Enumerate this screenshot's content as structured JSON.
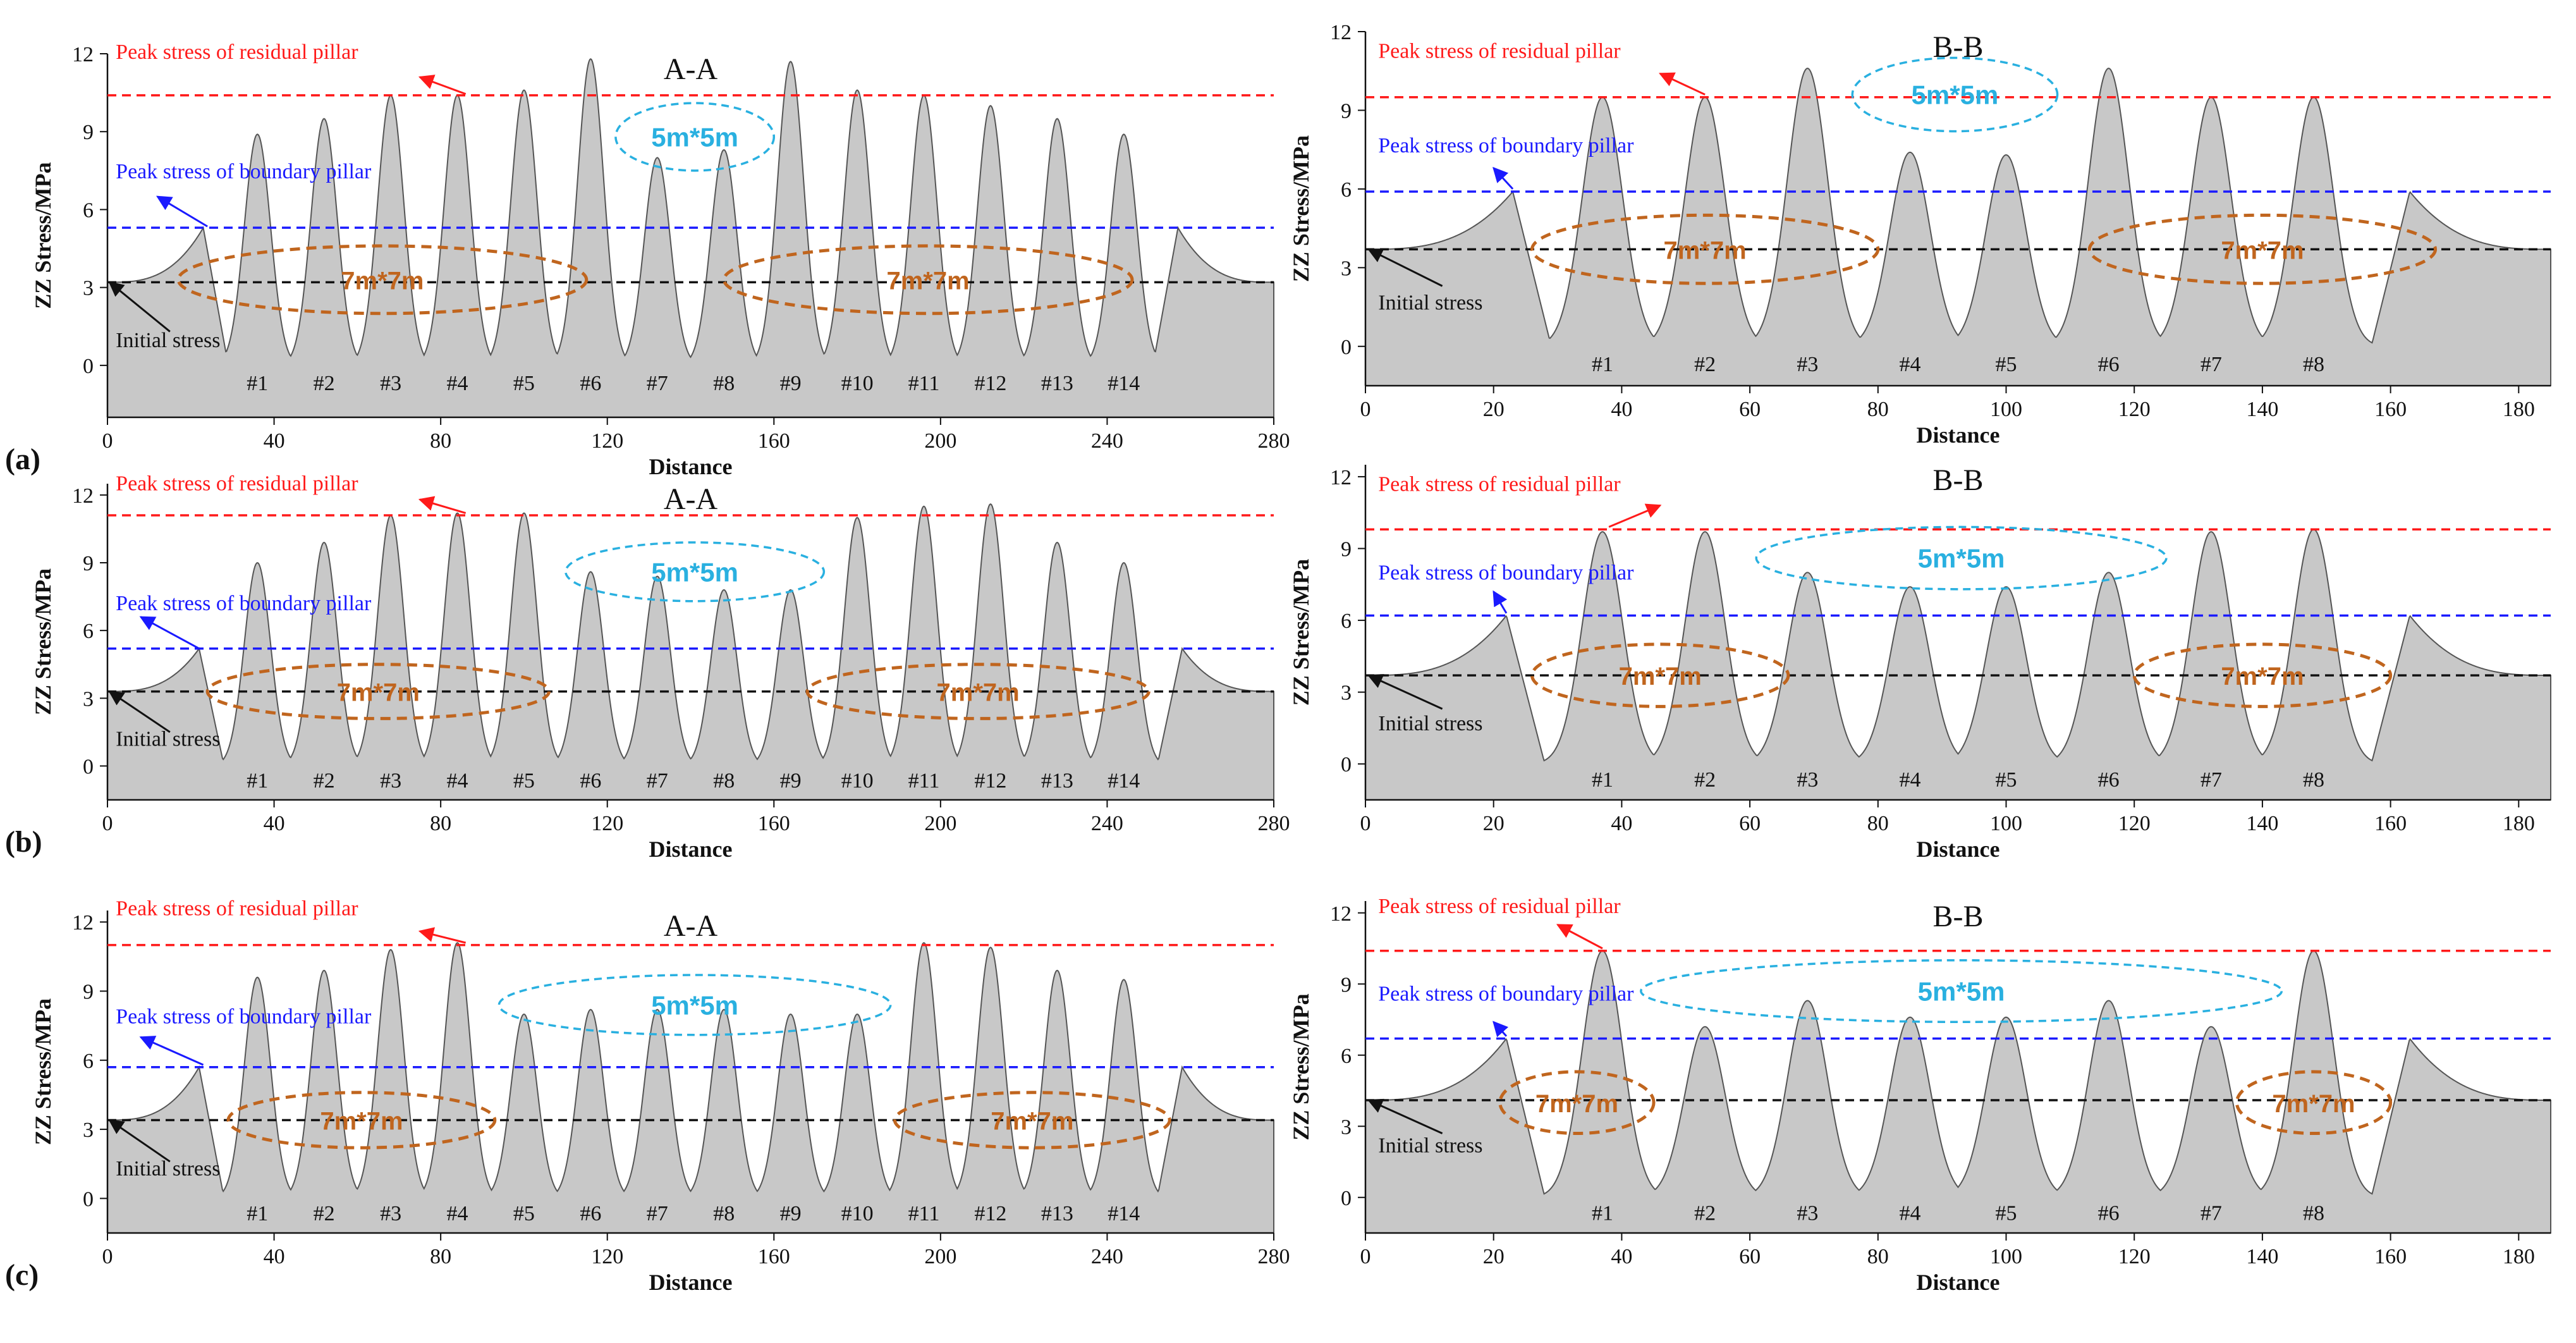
{
  "colors": {
    "area_fill": "#c8c8c8",
    "area_stroke": "#555555",
    "residual": "#ff1a1a",
    "boundary": "#1a1aff",
    "initial": "#111111",
    "ellipse_small": "#29b0e0",
    "ellipse_large": "#c0651e"
  },
  "chart_data": [
    {
      "id": "a-AA",
      "type": "area",
      "row_label": "(a)",
      "title": "A-A",
      "xlabel": "Distance",
      "ylabel": "ZZ Stress/MPa",
      "xlim": [
        0,
        280
      ],
      "ylim": [
        -2,
        12
      ],
      "xticks": [
        "0",
        "40",
        "80",
        "120",
        "160",
        "200",
        "240",
        "280"
      ],
      "yticks": [
        "0",
        "3",
        "6",
        "9",
        "12"
      ],
      "initial_stress": 3.2,
      "boundary_peak": 5.3,
      "residual_peak": 10.4,
      "boundary_edge": {
        "left_peak_x": 23,
        "left_peak": 5.3,
        "right_peak_x": 257,
        "right_peak": 5.3
      },
      "pillars": [
        {
          "label": "#1",
          "x": 36,
          "peak": 8.9
        },
        {
          "label": "#2",
          "x": 52,
          "peak": 9.5
        },
        {
          "label": "#3",
          "x": 68,
          "peak": 10.4
        },
        {
          "label": "#4",
          "x": 84,
          "peak": 10.4
        },
        {
          "label": "#5",
          "x": 100,
          "peak": 10.6
        },
        {
          "label": "#6",
          "x": 116,
          "peak": 11.8
        },
        {
          "label": "#7",
          "x": 132,
          "peak": 8.0
        },
        {
          "label": "#8",
          "x": 148,
          "peak": 8.3
        },
        {
          "label": "#9",
          "x": 164,
          "peak": 11.7
        },
        {
          "label": "#10",
          "x": 180,
          "peak": 10.6
        },
        {
          "label": "#11",
          "x": 196,
          "peak": 10.4
        },
        {
          "label": "#12",
          "x": 212,
          "peak": 10.0
        },
        {
          "label": "#13",
          "x": 228,
          "peak": 9.5
        },
        {
          "label": "#14",
          "x": 244,
          "peak": 8.9
        }
      ],
      "annotations": {
        "residual": "Peak stress of residual pillar",
        "boundary": "Peak stress of boundary pillar",
        "initial": "Initial stress"
      },
      "ellipses": [
        {
          "label": "5m*5m",
          "style": "small",
          "cx": 141,
          "cy": 8.8,
          "rx": 19,
          "ry": 1.3,
          "fs": 1
        },
        {
          "label": "7m*7m",
          "style": "large",
          "cx": 66,
          "cy": 3.3,
          "rx": 49,
          "ry": 1.3,
          "fs": 1
        },
        {
          "label": "7m*7m",
          "style": "large",
          "cx": 197,
          "cy": 3.3,
          "rx": 49,
          "ry": 1.3,
          "fs": 1
        }
      ],
      "arrows": {
        "residual": [
          75,
          11.1,
          86,
          10.45
        ],
        "boundary": [
          12,
          6.5,
          24,
          5.35
        ],
        "initial": [
          15,
          1.3,
          0.5,
          3.2
        ]
      },
      "text_pos": {
        "residual": [
          2,
          11.8
        ],
        "boundary": [
          2,
          7.2
        ],
        "initial": [
          2,
          0.7
        ]
      }
    },
    {
      "id": "a-BB",
      "type": "area",
      "title": "B-B",
      "xlabel": "Distance",
      "ylabel": "ZZ Stress/MPa",
      "xlim": [
        0,
        185
      ],
      "ylim": [
        -1.5,
        12
      ],
      "xticks": [
        "0",
        "20",
        "40",
        "60",
        "80",
        "100",
        "120",
        "140",
        "160",
        "180"
      ],
      "yticks": [
        "0",
        "3",
        "6",
        "9",
        "12"
      ],
      "initial_stress": 3.7,
      "boundary_peak": 5.9,
      "residual_peak": 9.5,
      "boundary_edge": {
        "left_peak_x": 23,
        "left_peak": 5.9,
        "right_peak_x": 163,
        "right_peak": 5.9
      },
      "pillars": [
        {
          "label": "#1",
          "x": 37,
          "peak": 9.5
        },
        {
          "label": "#2",
          "x": 53,
          "peak": 9.5
        },
        {
          "label": "#3",
          "x": 69,
          "peak": 10.6
        },
        {
          "label": "#4",
          "x": 85,
          "peak": 7.4
        },
        {
          "label": "#5",
          "x": 100,
          "peak": 7.3
        },
        {
          "label": "#6",
          "x": 116,
          "peak": 10.6
        },
        {
          "label": "#7",
          "x": 132,
          "peak": 9.5
        },
        {
          "label": "#8",
          "x": 148,
          "peak": 9.5
        }
      ],
      "annotations": {
        "residual": "Peak stress of residual pillar",
        "boundary": "Peak stress of boundary pillar",
        "initial": "Initial stress"
      },
      "ellipses": [
        {
          "label": "5m*5m",
          "style": "small",
          "cx": 92,
          "cy": 9.6,
          "rx": 16,
          "ry": 1.4,
          "fs": 1
        },
        {
          "label": "7m*7m",
          "style": "large",
          "cx": 53,
          "cy": 3.7,
          "rx": 27,
          "ry": 1.3,
          "fs": 1
        },
        {
          "label": "7m*7m",
          "style": "large",
          "cx": 140,
          "cy": 3.7,
          "rx": 27,
          "ry": 1.3,
          "fs": 1
        }
      ],
      "arrows": {
        "residual": [
          46,
          10.4,
          53,
          9.6
        ],
        "boundary": [
          20,
          6.8,
          23,
          6.0
        ],
        "initial": [
          12,
          2.3,
          0.5,
          3.7
        ]
      },
      "text_pos": {
        "residual": [
          2,
          11.0
        ],
        "boundary": [
          2,
          7.4
        ],
        "initial": [
          2,
          1.4
        ]
      }
    },
    {
      "id": "b-AA",
      "type": "area",
      "row_label": "(b)",
      "title": "A-A",
      "xlabel": "Distance",
      "ylabel": "ZZ Stress/MPa",
      "xlim": [
        0,
        280
      ],
      "ylim": [
        -1.5,
        12.5
      ],
      "xticks": [
        "0",
        "40",
        "80",
        "120",
        "160",
        "200",
        "240",
        "280"
      ],
      "yticks": [
        "0",
        "3",
        "6",
        "9",
        "12"
      ],
      "initial_stress": 3.3,
      "boundary_peak": 5.2,
      "residual_peak": 11.1,
      "boundary_edge": {
        "left_peak_x": 22,
        "left_peak": 5.2,
        "right_peak_x": 258,
        "right_peak": 5.2
      },
      "pillars": [
        {
          "label": "#1",
          "x": 36,
          "peak": 9.0
        },
        {
          "label": "#2",
          "x": 52,
          "peak": 9.9
        },
        {
          "label": "#3",
          "x": 68,
          "peak": 11.1
        },
        {
          "label": "#4",
          "x": 84,
          "peak": 11.2
        },
        {
          "label": "#5",
          "x": 100,
          "peak": 11.2
        },
        {
          "label": "#6",
          "x": 116,
          "peak": 8.6
        },
        {
          "label": "#7",
          "x": 132,
          "peak": 8.4
        },
        {
          "label": "#8",
          "x": 148,
          "peak": 7.8
        },
        {
          "label": "#9",
          "x": 164,
          "peak": 7.8
        },
        {
          "label": "#10",
          "x": 180,
          "peak": 11.0
        },
        {
          "label": "#11",
          "x": 196,
          "peak": 11.5
        },
        {
          "label": "#12",
          "x": 212,
          "peak": 11.6
        },
        {
          "label": "#13",
          "x": 228,
          "peak": 9.9
        },
        {
          "label": "#14",
          "x": 244,
          "peak": 9.0
        }
      ],
      "annotations": {
        "residual": "Peak stress of residual pillar",
        "boundary": "Peak stress of boundary pillar",
        "initial": "Initial stress"
      },
      "ellipses": [
        {
          "label": "5m*5m",
          "style": "small",
          "cx": 141,
          "cy": 8.6,
          "rx": 31,
          "ry": 1.3,
          "fs": 1
        },
        {
          "label": "7m*7m",
          "style": "large",
          "cx": 65,
          "cy": 3.3,
          "rx": 41,
          "ry": 1.2,
          "fs": 1
        },
        {
          "label": "7m*7m",
          "style": "large",
          "cx": 209,
          "cy": 3.3,
          "rx": 41,
          "ry": 1.2,
          "fs": 1
        }
      ],
      "arrows": {
        "residual": [
          75,
          11.8,
          86,
          11.2
        ],
        "boundary": [
          8,
          6.6,
          22,
          5.2
        ],
        "initial": [
          15,
          1.5,
          0.5,
          3.3
        ]
      },
      "text_pos": {
        "residual": [
          2,
          12.2
        ],
        "boundary": [
          2,
          6.9
        ],
        "initial": [
          2,
          0.9
        ]
      }
    },
    {
      "id": "b-BB",
      "type": "area",
      "title": "B-B",
      "xlabel": "Distance",
      "ylabel": "ZZ Stress/MPa",
      "xlim": [
        0,
        185
      ],
      "ylim": [
        -1.5,
        12.5
      ],
      "xticks": [
        "0",
        "20",
        "40",
        "60",
        "80",
        "100",
        "120",
        "140",
        "160",
        "180"
      ],
      "yticks": [
        "0",
        "3",
        "6",
        "9",
        "12"
      ],
      "initial_stress": 3.7,
      "boundary_peak": 6.2,
      "residual_peak": 9.8,
      "boundary_edge": {
        "left_peak_x": 22,
        "left_peak": 6.2,
        "right_peak_x": 163,
        "right_peak": 6.2
      },
      "pillars": [
        {
          "label": "#1",
          "x": 37,
          "peak": 9.7
        },
        {
          "label": "#2",
          "x": 53,
          "peak": 9.7
        },
        {
          "label": "#3",
          "x": 69,
          "peak": 8.0
        },
        {
          "label": "#4",
          "x": 85,
          "peak": 7.4
        },
        {
          "label": "#5",
          "x": 100,
          "peak": 7.4
        },
        {
          "label": "#6",
          "x": 116,
          "peak": 8.0
        },
        {
          "label": "#7",
          "x": 132,
          "peak": 9.7
        },
        {
          "label": "#8",
          "x": 148,
          "peak": 9.8
        }
      ],
      "annotations": {
        "residual": "Peak stress of residual pillar",
        "boundary": "Peak stress of boundary pillar",
        "initial": "Initial stress"
      },
      "ellipses": [
        {
          "label": "5m*5m",
          "style": "small",
          "cx": 93,
          "cy": 8.6,
          "rx": 32,
          "ry": 1.3,
          "fs": 1
        },
        {
          "label": "7m*7m",
          "style": "large",
          "cx": 46,
          "cy": 3.7,
          "rx": 20,
          "ry": 1.3,
          "fs": 1
        },
        {
          "label": "7m*7m",
          "style": "large",
          "cx": 140,
          "cy": 3.7,
          "rx": 20,
          "ry": 1.3,
          "fs": 1
        }
      ],
      "arrows": {
        "residual": [
          46,
          10.8,
          38,
          9.9
        ],
        "boundary": [
          20,
          7.2,
          22,
          6.3
        ],
        "initial": [
          12,
          2.3,
          0.5,
          3.7
        ]
      },
      "text_pos": {
        "residual": [
          2,
          11.4
        ],
        "boundary": [
          2,
          7.7
        ],
        "initial": [
          2,
          1.4
        ]
      }
    },
    {
      "id": "c-AA",
      "type": "area",
      "row_label": "(c)",
      "title": "A-A",
      "xlabel": "Distance",
      "ylabel": "ZZ Stress/MPa",
      "xlim": [
        0,
        280
      ],
      "ylim": [
        -1.5,
        12.5
      ],
      "xticks": [
        "0",
        "40",
        "80",
        "120",
        "160",
        "200",
        "240",
        "280"
      ],
      "yticks": [
        "0",
        "3",
        "6",
        "9",
        "12"
      ],
      "initial_stress": 3.4,
      "boundary_peak": 5.7,
      "residual_peak": 11.0,
      "boundary_edge": {
        "left_peak_x": 22,
        "left_peak": 5.7,
        "right_peak_x": 258,
        "right_peak": 5.7
      },
      "pillars": [
        {
          "label": "#1",
          "x": 36,
          "peak": 9.6
        },
        {
          "label": "#2",
          "x": 52,
          "peak": 9.9
        },
        {
          "label": "#3",
          "x": 68,
          "peak": 10.8
        },
        {
          "label": "#4",
          "x": 84,
          "peak": 11.1
        },
        {
          "label": "#5",
          "x": 100,
          "peak": 8.0
        },
        {
          "label": "#6",
          "x": 116,
          "peak": 8.2
        },
        {
          "label": "#7",
          "x": 132,
          "peak": 8.2
        },
        {
          "label": "#8",
          "x": 148,
          "peak": 8.2
        },
        {
          "label": "#9",
          "x": 164,
          "peak": 8.0
        },
        {
          "label": "#10",
          "x": 180,
          "peak": 8.0
        },
        {
          "label": "#11",
          "x": 196,
          "peak": 11.1
        },
        {
          "label": "#12",
          "x": 212,
          "peak": 10.9
        },
        {
          "label": "#13",
          "x": 228,
          "peak": 9.9
        },
        {
          "label": "#14",
          "x": 244,
          "peak": 9.5
        }
      ],
      "annotations": {
        "residual": "Peak stress of residual pillar",
        "boundary": "Peak stress of boundary pillar",
        "initial": "Initial stress"
      },
      "ellipses": [
        {
          "label": "5m*5m",
          "style": "small",
          "cx": 141,
          "cy": 8.4,
          "rx": 47,
          "ry": 1.3,
          "fs": 1
        },
        {
          "label": "7m*7m",
          "style": "large",
          "cx": 61,
          "cy": 3.4,
          "rx": 32,
          "ry": 1.2,
          "fs": 1
        },
        {
          "label": "7m*7m",
          "style": "large",
          "cx": 222,
          "cy": 3.4,
          "rx": 33,
          "ry": 1.2,
          "fs": 1
        }
      ],
      "arrows": {
        "residual": [
          75,
          11.6,
          86,
          11.1
        ],
        "boundary": [
          8,
          7.0,
          23,
          5.8
        ],
        "initial": [
          15,
          1.6,
          0.5,
          3.4
        ]
      },
      "text_pos": {
        "residual": [
          2,
          12.3
        ],
        "boundary": [
          2,
          7.6
        ],
        "initial": [
          2,
          1.0
        ]
      }
    },
    {
      "id": "c-BB",
      "type": "area",
      "title": "B-B",
      "xlabel": "Distance",
      "ylabel": "ZZ Stress/MPa",
      "xlim": [
        0,
        185
      ],
      "ylim": [
        -1.5,
        12.5
      ],
      "xticks": [
        "0",
        "20",
        "40",
        "60",
        "80",
        "100",
        "120",
        "140",
        "160",
        "180"
      ],
      "yticks": [
        "0",
        "3",
        "6",
        "9",
        "12"
      ],
      "initial_stress": 4.1,
      "boundary_peak": 6.7,
      "residual_peak": 10.4,
      "boundary_edge": {
        "left_peak_x": 22,
        "left_peak": 6.7,
        "right_peak_x": 163,
        "right_peak": 6.7
      },
      "pillars": [
        {
          "label": "#1",
          "x": 37,
          "peak": 10.4
        },
        {
          "label": "#2",
          "x": 53,
          "peak": 7.2
        },
        {
          "label": "#3",
          "x": 69,
          "peak": 8.3
        },
        {
          "label": "#4",
          "x": 85,
          "peak": 7.6
        },
        {
          "label": "#5",
          "x": 100,
          "peak": 7.6
        },
        {
          "label": "#6",
          "x": 116,
          "peak": 8.3
        },
        {
          "label": "#7",
          "x": 132,
          "peak": 7.2
        },
        {
          "label": "#8",
          "x": 148,
          "peak": 10.4
        }
      ],
      "annotations": {
        "residual": "Peak stress of residual pillar",
        "boundary": "Peak stress of boundary pillar",
        "initial": "Initial stress"
      },
      "ellipses": [
        {
          "label": "5m*5m",
          "style": "small",
          "cx": 93,
          "cy": 8.7,
          "rx": 50,
          "ry": 1.3,
          "fs": 1
        },
        {
          "label": "7m*7m",
          "style": "large",
          "cx": 33,
          "cy": 4.0,
          "rx": 12,
          "ry": 1.3,
          "fs": 1
        },
        {
          "label": "7m*7m",
          "style": "large",
          "cx": 148,
          "cy": 4.0,
          "rx": 12,
          "ry": 1.3,
          "fs": 1
        }
      ],
      "arrows": {
        "residual": [
          30,
          11.5,
          37,
          10.5
        ],
        "boundary": [
          20,
          7.4,
          22,
          6.8
        ],
        "initial": [
          12,
          2.7,
          0.5,
          4.1
        ]
      },
      "text_pos": {
        "residual": [
          2,
          12.0
        ],
        "boundary": [
          2,
          8.3
        ],
        "initial": [
          2,
          1.9
        ]
      }
    }
  ]
}
